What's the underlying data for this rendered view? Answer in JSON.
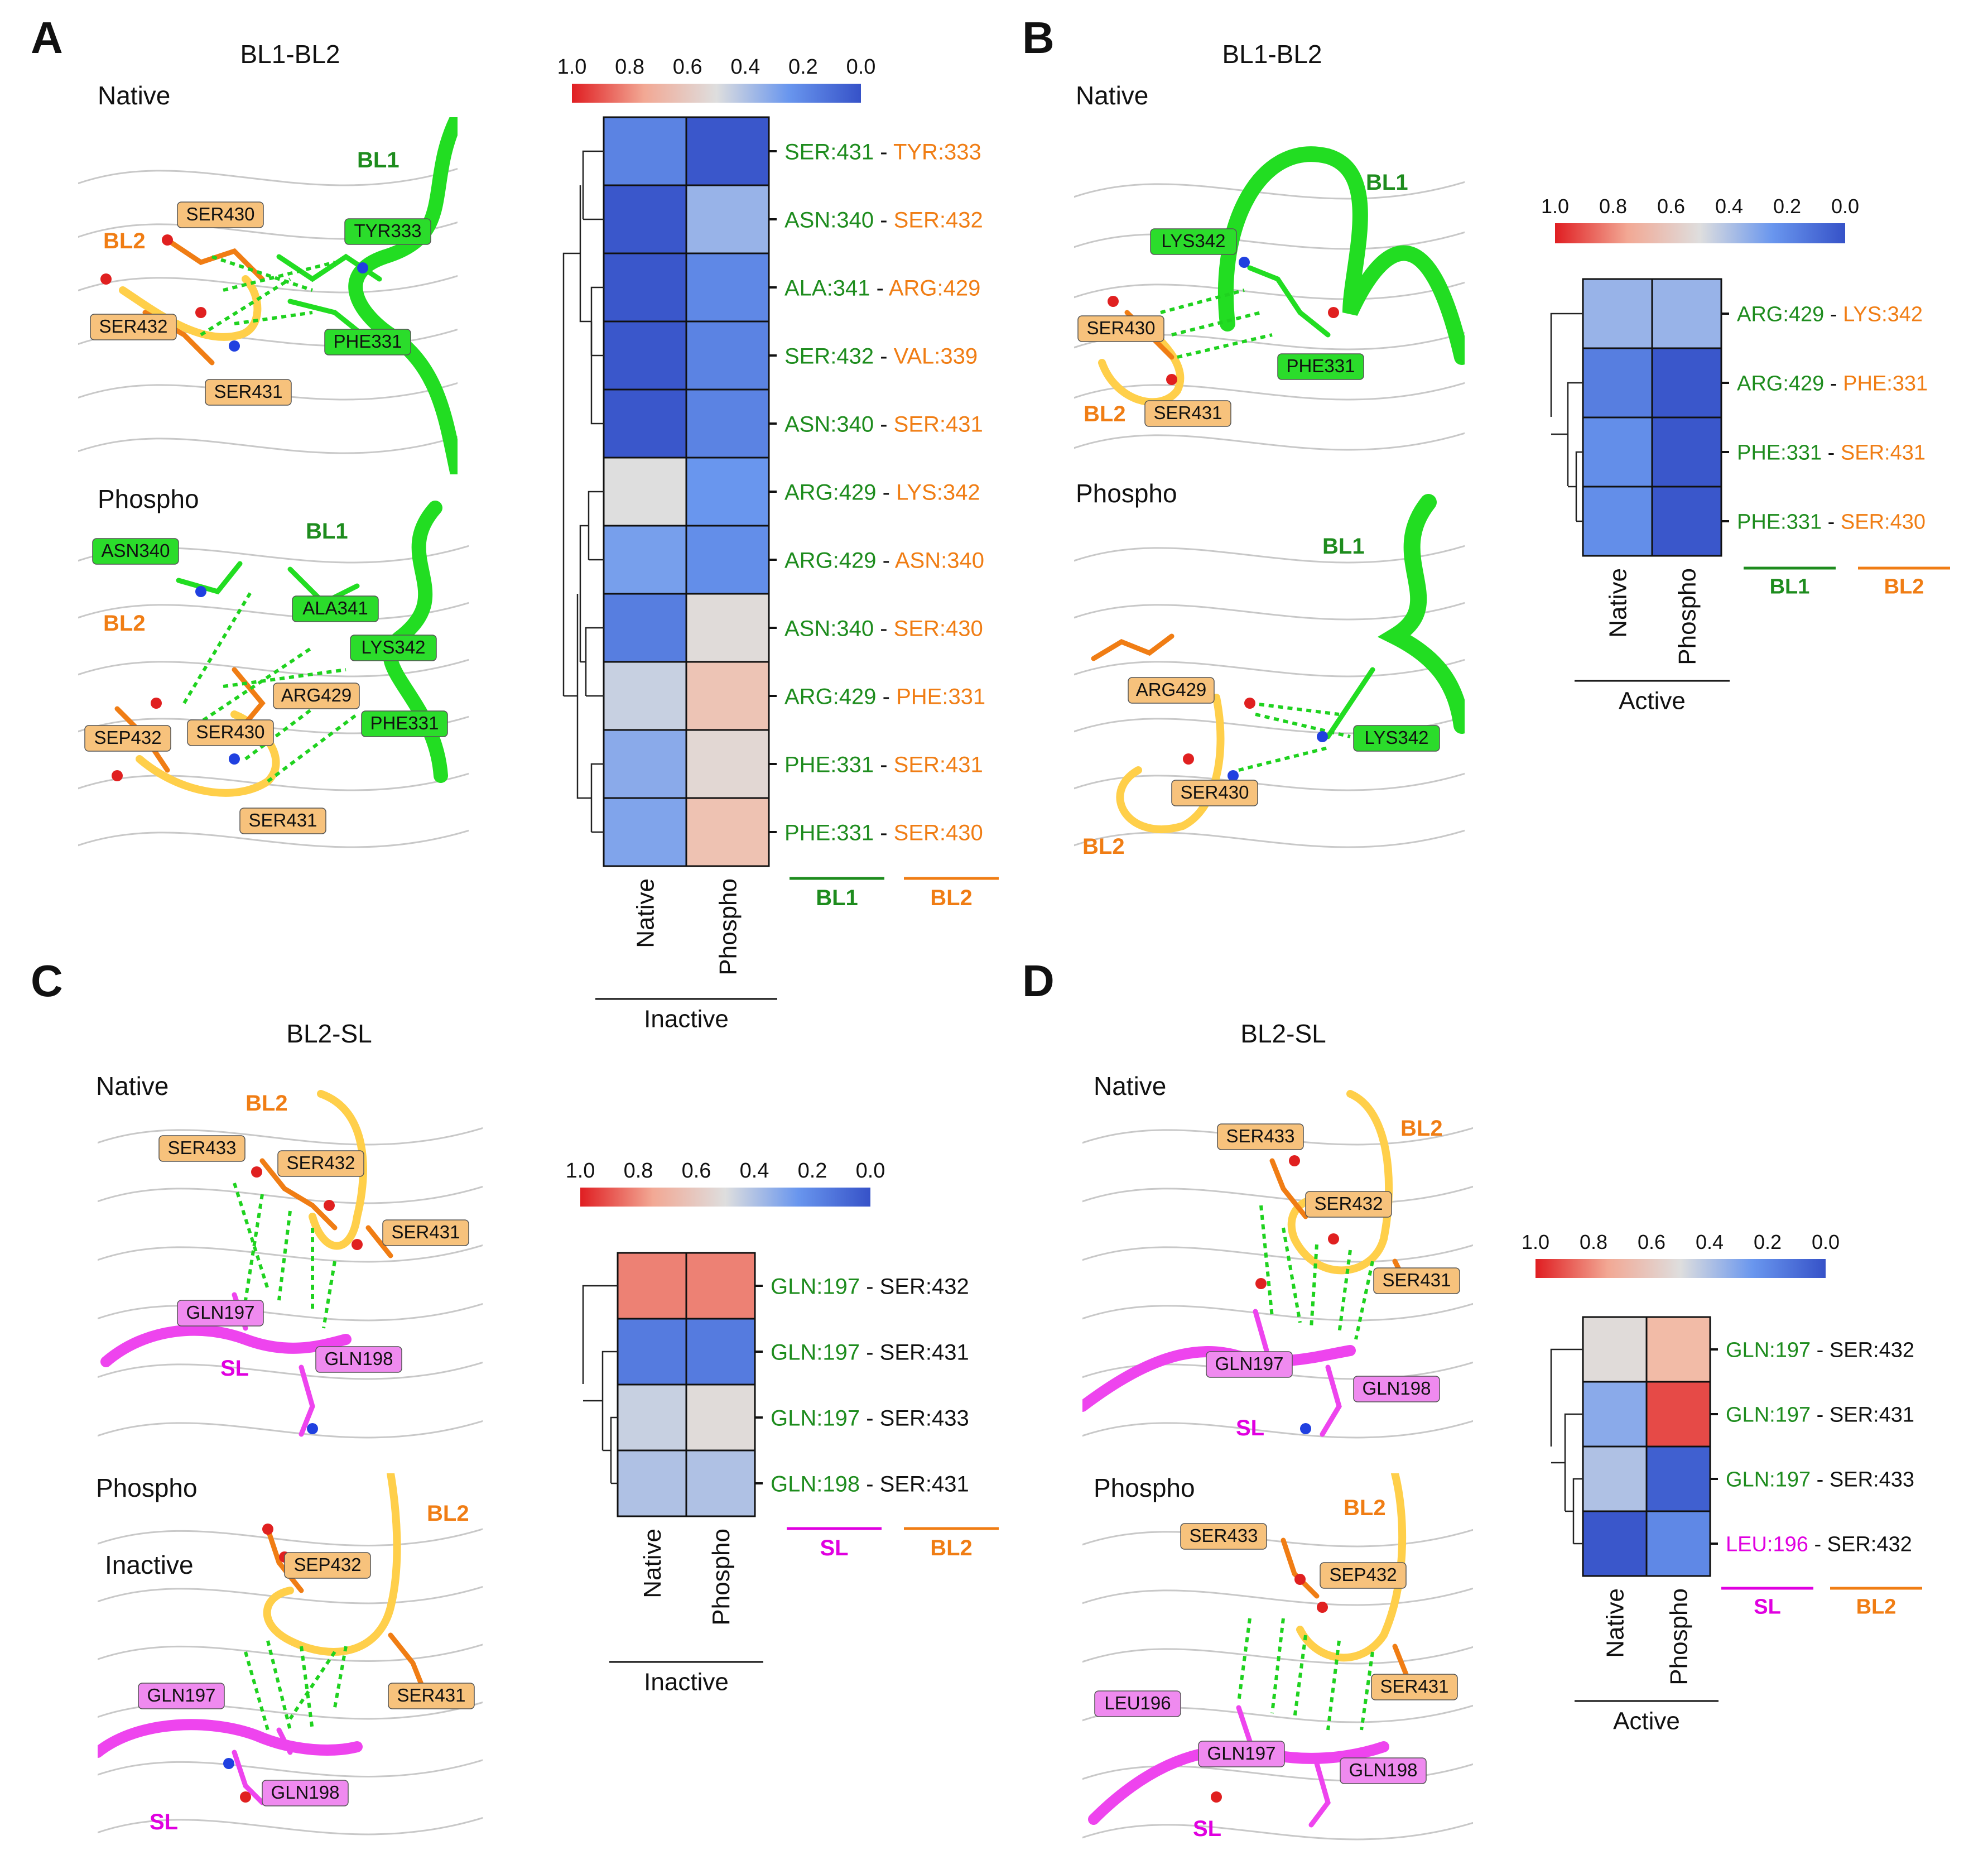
{
  "colors": {
    "bl1": "#1e8c1e",
    "bl2": "#f07d14",
    "sl": "#e000e0",
    "black": "#111111",
    "bl1_ribbon": "#22dd22",
    "bl2_ribbon": "#ffcf4a",
    "sl_ribbon": "#ee44ee",
    "hbond": "#1fd21f",
    "backbone": "#c8c8c8"
  },
  "colorscale": {
    "ticks": [
      "1.0",
      "0.8",
      "0.6",
      "0.4",
      "0.2",
      "0.0"
    ]
  },
  "panels": [
    {
      "letter": "A",
      "title": "BL1-BL2",
      "states": [
        {
          "name": "Native",
          "labels": [
            "BL1",
            "BL2",
            "SER430",
            "TYR333",
            "SER432",
            "PHE331",
            "SER431"
          ]
        },
        {
          "name": "Phospho",
          "labels": [
            "BL1",
            "BL2",
            "ASN340",
            "ALA341",
            "LYS342",
            "ARG429",
            "PHE331",
            "SEP432",
            "SER430",
            "SER431"
          ]
        }
      ]
    },
    {
      "letter": "B",
      "title": "BL1-BL2",
      "states": [
        {
          "name": "Native",
          "labels": [
            "BL1",
            "BL2",
            "LYS342",
            "SER430",
            "PHE331",
            "SER431"
          ]
        },
        {
          "name": "Phospho",
          "labels": [
            "BL1",
            "BL2",
            "ARG429",
            "LYS342",
            "SER430"
          ]
        }
      ]
    },
    {
      "letter": "C",
      "title": "BL2-SL",
      "states": [
        {
          "name": "Native",
          "labels": [
            "BL2",
            "SER433",
            "SER432",
            "SER431",
            "GLN197",
            "GLN198",
            "SL"
          ]
        },
        {
          "name": "Phospho",
          "sublabel": "Inactive",
          "labels": [
            "BL2",
            "SEP432",
            "GLN197",
            "SER431",
            "GLN198",
            "SL"
          ]
        }
      ]
    },
    {
      "letter": "D",
      "title": "BL2-SL",
      "states": [
        {
          "name": "Native",
          "labels": [
            "BL2",
            "SER433",
            "SER432",
            "SER431",
            "GLN197",
            "GLN198",
            "SL"
          ]
        },
        {
          "name": "Phospho",
          "labels": [
            "BL2",
            "SER433",
            "SEP432",
            "SER431",
            "LEU196",
            "GLN197",
            "GLN198",
            "SL"
          ]
        }
      ]
    }
  ],
  "chart_data": [
    {
      "type": "heatmap",
      "id": "A",
      "columns": [
        "Native",
        "Phospho"
      ],
      "group_label": "Inactive",
      "value_range": [
        0.0,
        1.0
      ],
      "row_legend": [
        {
          "label": "BL1",
          "color": "bl1"
        },
        {
          "label": "BL2",
          "color": "bl2"
        }
      ],
      "rows": [
        {
          "left": "SER:431",
          "right": "TYR:333",
          "lc": "bl1",
          "rc": "bl2",
          "values": [
            0.18,
            0.02
          ]
        },
        {
          "left": "ASN:340",
          "right": "SER:432",
          "lc": "bl1",
          "rc": "bl2",
          "values": [
            0.02,
            0.35
          ]
        },
        {
          "left": "ALA:341",
          "right": "ARG:429",
          "lc": "bl1",
          "rc": "bl2",
          "values": [
            0.02,
            0.2
          ]
        },
        {
          "left": "SER:432",
          "right": "VAL:339",
          "lc": "bl1",
          "rc": "bl2",
          "values": [
            0.02,
            0.18
          ]
        },
        {
          "left": "ASN:340",
          "right": "SER:431",
          "lc": "bl1",
          "rc": "bl2",
          "values": [
            0.02,
            0.18
          ]
        },
        {
          "left": "ARG:429",
          "right": "LYS:342",
          "lc": "bl1",
          "rc": "bl2",
          "values": [
            0.5,
            0.25
          ]
        },
        {
          "left": "ARG:429",
          "right": "ASN:340",
          "lc": "bl1",
          "rc": "bl2",
          "values": [
            0.28,
            0.22
          ]
        },
        {
          "left": "ASN:340",
          "right": "SER:430",
          "lc": "bl1",
          "rc": "bl2",
          "values": [
            0.16,
            0.52
          ]
        },
        {
          "left": "ARG:429",
          "right": "PHE:331",
          "lc": "bl1",
          "rc": "bl2",
          "values": [
            0.45,
            0.65
          ]
        },
        {
          "left": "PHE:331",
          "right": "SER:431",
          "lc": "bl1",
          "rc": "bl2",
          "values": [
            0.32,
            0.54
          ]
        },
        {
          "left": "PHE:331",
          "right": "SER:430",
          "lc": "bl1",
          "rc": "bl2",
          "values": [
            0.3,
            0.66
          ]
        }
      ]
    },
    {
      "type": "heatmap",
      "id": "B",
      "columns": [
        "Native",
        "Phospho"
      ],
      "group_label": "Active",
      "value_range": [
        0.0,
        1.0
      ],
      "row_legend": [
        {
          "label": "BL1",
          "color": "bl1"
        },
        {
          "label": "BL2",
          "color": "bl2"
        }
      ],
      "rows": [
        {
          "left": "ARG:429",
          "right": "LYS:342",
          "lc": "bl1",
          "rc": "bl2",
          "values": [
            0.35,
            0.35
          ]
        },
        {
          "left": "ARG:429",
          "right": "PHE:331",
          "lc": "bl1",
          "rc": "bl2",
          "values": [
            0.16,
            0.02
          ]
        },
        {
          "left": "PHE:331",
          "right": "SER:431",
          "lc": "bl1",
          "rc": "bl2",
          "values": [
            0.22,
            0.02
          ]
        },
        {
          "left": "PHE:331",
          "right": "SER:430",
          "lc": "bl1",
          "rc": "bl2",
          "values": [
            0.22,
            0.02
          ]
        }
      ]
    },
    {
      "type": "heatmap",
      "id": "C",
      "columns": [
        "Native",
        "Phospho"
      ],
      "group_label": "Inactive",
      "value_range": [
        0.0,
        1.0
      ],
      "row_legend": [
        {
          "label": "SL",
          "color": "sl"
        },
        {
          "label": "BL2",
          "color": "bl2"
        }
      ],
      "rows": [
        {
          "left": "GLN:197",
          "right": "SER:432",
          "lc": "bl1",
          "rc": "black",
          "values": [
            0.82,
            0.82
          ]
        },
        {
          "left": "GLN:197",
          "right": "SER:431",
          "lc": "bl1",
          "rc": "black",
          "values": [
            0.15,
            0.15
          ]
        },
        {
          "left": "GLN:197",
          "right": "SER:433",
          "lc": "bl1",
          "rc": "black",
          "values": [
            0.45,
            0.52
          ]
        },
        {
          "left": "GLN:198",
          "right": "SER:431",
          "lc": "bl1",
          "rc": "black",
          "values": [
            0.4,
            0.4
          ]
        }
      ]
    },
    {
      "type": "heatmap",
      "id": "D",
      "columns": [
        "Native",
        "Phospho"
      ],
      "group_label": "Active",
      "value_range": [
        0.0,
        1.0
      ],
      "row_legend": [
        {
          "label": "SL",
          "color": "sl"
        },
        {
          "label": "BL2",
          "color": "bl2"
        }
      ],
      "rows": [
        {
          "left": "GLN:197",
          "right": "SER:432",
          "lc": "bl1",
          "rc": "black",
          "values": [
            0.52,
            0.7
          ]
        },
        {
          "left": "GLN:197",
          "right": "SER:431",
          "lc": "bl1",
          "rc": "black",
          "values": [
            0.32,
            0.92
          ]
        },
        {
          "left": "GLN:197",
          "right": "SER:433",
          "lc": "bl1",
          "rc": "black",
          "values": [
            0.4,
            0.05
          ]
        },
        {
          "left": "LEU:196",
          "right": "SER:432",
          "lc": "sl",
          "rc": "black",
          "values": [
            0.02,
            0.2
          ]
        }
      ]
    }
  ]
}
